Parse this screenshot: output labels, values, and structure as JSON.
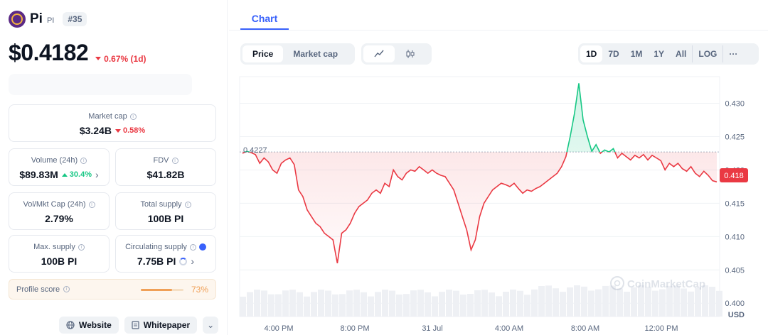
{
  "coin": {
    "name": "Pi",
    "symbol": "PI",
    "rank": "#35",
    "price": "$0.4182",
    "change": "0.67% (1d)"
  },
  "stats": {
    "market_cap": {
      "label": "Market cap",
      "value": "$3.24B",
      "change": "0.58%"
    },
    "volume": {
      "label": "Volume (24h)",
      "value": "$89.83M",
      "change": "30.4%"
    },
    "fdv": {
      "label": "FDV",
      "value": "$41.82B"
    },
    "vol_mkt": {
      "label": "Vol/Mkt Cap (24h)",
      "value": "2.79%"
    },
    "total_supply": {
      "label": "Total supply",
      "value": "100B PI"
    },
    "max_supply": {
      "label": "Max. supply",
      "value": "100B PI"
    },
    "circ_supply": {
      "label": "Circulating supply",
      "value": "7.75B PI"
    }
  },
  "profile": {
    "label": "Profile score",
    "value": "73%",
    "score": 73
  },
  "links": {
    "website": "Website",
    "whitepaper": "Whitepaper"
  },
  "tabs": {
    "chart": "Chart"
  },
  "controls": {
    "metric": [
      "Price",
      "Market cap"
    ],
    "metric_active": "Price",
    "ranges": [
      "1D",
      "7D",
      "1M",
      "1Y",
      "All",
      "LOG",
      "···"
    ],
    "range_active": "1D",
    "chart_icons": [
      "line-chart-icon",
      "candlestick-icon"
    ]
  },
  "colors": {
    "up": "#16c784",
    "down": "#ea3943",
    "accent": "#3861fb",
    "text": "#0d1421",
    "muted": "#58667e"
  },
  "chart_data": {
    "type": "line",
    "y_ticks": [
      "0.430",
      "0.425",
      "0.420",
      "0.415",
      "0.410",
      "0.405",
      "0.400"
    ],
    "ylim": [
      0.398,
      0.434
    ],
    "x_ticks": [
      "4:00 PM",
      "8:00 PM",
      "31 Jul",
      "4:00 AM",
      "8:00 AM",
      "12:00 PM"
    ],
    "baseline": 0.4227,
    "baseline_label": "0.4227",
    "last_label": "0.418",
    "unit": "USD",
    "watermark": "CoinMarketCap",
    "series": [
      {
        "values": [
          0.4225,
          0.4228,
          0.4226,
          0.4223,
          0.421,
          0.4218,
          0.4212,
          0.42,
          0.4195,
          0.421,
          0.4215,
          0.4218,
          0.4208,
          0.417,
          0.416,
          0.414,
          0.413,
          0.412,
          0.4115,
          0.4105,
          0.41,
          0.4095,
          0.406,
          0.4105,
          0.411,
          0.412,
          0.4135,
          0.4145,
          0.415,
          0.4155,
          0.4165,
          0.417,
          0.4165,
          0.418,
          0.4175,
          0.42,
          0.419,
          0.4185,
          0.4195,
          0.42,
          0.4198,
          0.4205,
          0.42,
          0.4195,
          0.42,
          0.4195,
          0.4192,
          0.419,
          0.418,
          0.417,
          0.415,
          0.413,
          0.411,
          0.408,
          0.4095,
          0.413,
          0.415,
          0.416,
          0.417,
          0.4175,
          0.418,
          0.4178,
          0.4175,
          0.418,
          0.4172,
          0.4165,
          0.417,
          0.4168,
          0.4172,
          0.4175,
          0.418,
          0.4185,
          0.419,
          0.4195,
          0.4205,
          0.422,
          0.425,
          0.4285,
          0.433,
          0.4275,
          0.425,
          0.4228,
          0.4238,
          0.4225,
          0.423,
          0.4227,
          0.4232,
          0.4218,
          0.4225,
          0.422,
          0.4215,
          0.4222,
          0.4218,
          0.4223,
          0.4215,
          0.4222,
          0.4218,
          0.4214,
          0.42,
          0.421,
          0.4205,
          0.421,
          0.4202,
          0.4198,
          0.4205,
          0.4195,
          0.419,
          0.4198,
          0.4192,
          0.4184,
          0.4182
        ]
      }
    ]
  }
}
